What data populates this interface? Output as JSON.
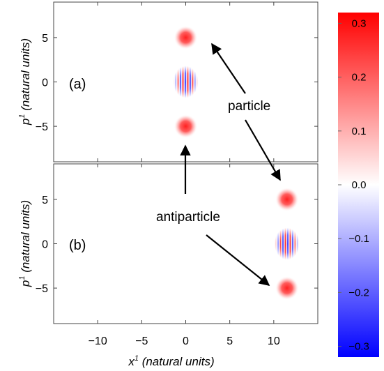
{
  "chart_data": {
    "type": "heatmap",
    "xlabel": "x",
    "xlabel_sup": "1",
    "xlabel_rest": " (natural units)",
    "ylabel": "p",
    "ylabel_sup": "1",
    "ylabel_rest": " (natural units)",
    "xlim": [
      -15,
      15
    ],
    "ylim": [
      -9,
      9
    ],
    "xticks": [
      -10,
      -5,
      0,
      5,
      10
    ],
    "xtick_labels": [
      "−10",
      "−5",
      "0",
      "5",
      "10"
    ],
    "yticks": [
      5,
      0,
      -5
    ],
    "ytick_labels": [
      "5",
      "0",
      "−5"
    ],
    "panels": [
      {
        "label": "(a)",
        "blobs": [
          {
            "x": 0,
            "y": 5,
            "kind": "gaussian"
          },
          {
            "x": 0,
            "y": 0,
            "kind": "interference"
          },
          {
            "x": 0,
            "y": -5,
            "kind": "gaussian"
          }
        ]
      },
      {
        "label": "(b)",
        "blobs": [
          {
            "x": 11.5,
            "y": 5,
            "kind": "gaussian"
          },
          {
            "x": 11.5,
            "y": 0,
            "kind": "interference"
          },
          {
            "x": 11.5,
            "y": -5,
            "kind": "gaussian"
          }
        ]
      }
    ],
    "annotations": [
      {
        "text": "particle"
      },
      {
        "text": "antiparticle"
      }
    ],
    "colorbar": {
      "range": [
        -0.3,
        0.3
      ],
      "ticks": [
        0.3,
        0.2,
        0.1,
        0.0,
        -0.1,
        -0.2,
        -0.3
      ],
      "tick_labels": [
        "0.3",
        "0.2",
        "0.1",
        "0.0",
        "−0.1",
        "−0.2",
        "−0.3"
      ],
      "colors": {
        "max": "#ff0000",
        "mid": "#ffffff",
        "min": "#0000ff"
      }
    }
  }
}
